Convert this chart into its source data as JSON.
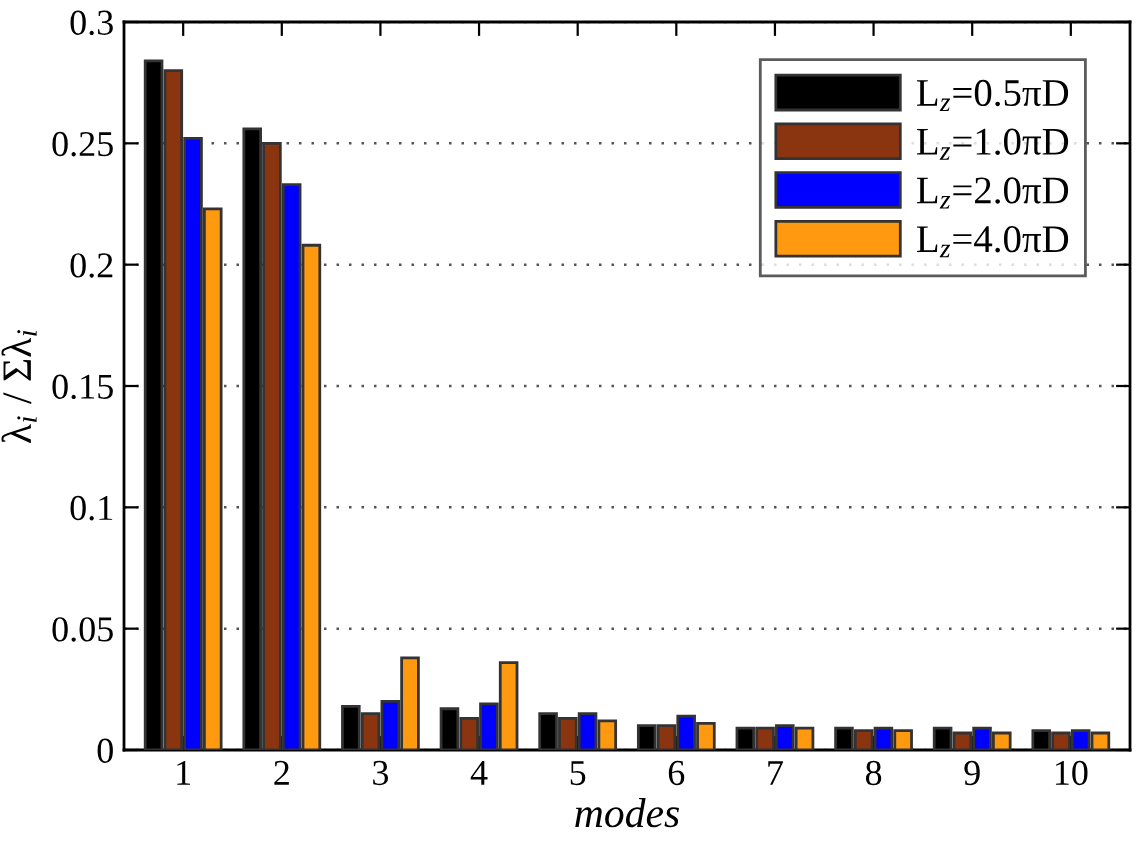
{
  "chart_data": {
    "type": "bar",
    "xlabel": "modes",
    "ylabel": "λ$_{i}$ / Σλ$_{i}$",
    "categories": [
      "1",
      "2",
      "3",
      "4",
      "5",
      "6",
      "7",
      "8",
      "9",
      "10"
    ],
    "series": [
      {
        "name": "L$_{z}$=0.5πD",
        "color": "#000000",
        "values": [
          0.284,
          0.256,
          0.018,
          0.017,
          0.015,
          0.01,
          0.009,
          0.009,
          0.009,
          0.008
        ]
      },
      {
        "name": "L$_{z}$=1.0πD",
        "color": "#8b3510",
        "values": [
          0.28,
          0.25,
          0.015,
          0.013,
          0.013,
          0.01,
          0.009,
          0.008,
          0.007,
          0.007
        ]
      },
      {
        "name": "L$_{z}$=2.0πD",
        "color": "#0000ff",
        "values": [
          0.252,
          0.233,
          0.02,
          0.019,
          0.015,
          0.014,
          0.01,
          0.009,
          0.009,
          0.008
        ]
      },
      {
        "name": "L$_{z}$=4.0πD",
        "color": "#ff9a10",
        "values": [
          0.223,
          0.208,
          0.038,
          0.036,
          0.012,
          0.011,
          0.009,
          0.008,
          0.007,
          0.007
        ]
      }
    ],
    "ylim": [
      0,
      0.3
    ],
    "yticks": [
      0,
      0.05,
      0.1,
      0.15,
      0.2,
      0.25,
      0.3
    ],
    "grid": "y",
    "legend": "top right"
  }
}
